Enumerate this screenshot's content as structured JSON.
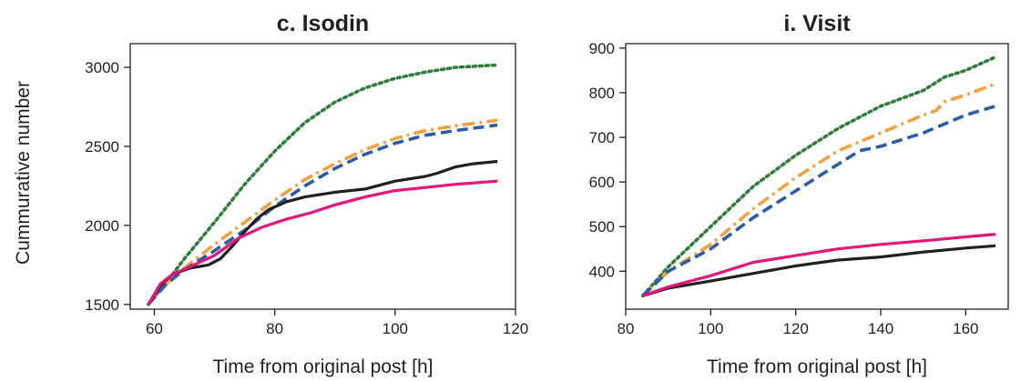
{
  "figure": {
    "ylabel": "Cummurative number"
  },
  "chart_data": [
    {
      "type": "line",
      "title": "c. Isodin",
      "xlabel": "Time from original post [h]",
      "ylabel": "Cummurative number",
      "xlim": [
        56,
        120
      ],
      "ylim": [
        1470,
        3150
      ],
      "xticks": [
        60,
        80,
        100,
        120
      ],
      "yticks": [
        1500,
        2000,
        2500,
        3000
      ],
      "grid": false,
      "legend": "none",
      "series": [
        {
          "color": "#2e7d3a",
          "style": "dotted",
          "x": [
            59,
            62,
            65,
            70,
            75,
            80,
            85,
            90,
            95,
            100,
            105,
            110,
            117
          ],
          "y": [
            1500,
            1640,
            1790,
            2020,
            2260,
            2470,
            2650,
            2780,
            2870,
            2930,
            2970,
            3000,
            3015
          ]
        },
        {
          "color": "#f5a03c",
          "style": "dashdot",
          "x": [
            59,
            62,
            65,
            70,
            75,
            80,
            85,
            90,
            95,
            100,
            105,
            110,
            117
          ],
          "y": [
            1500,
            1630,
            1730,
            1880,
            2020,
            2160,
            2290,
            2390,
            2480,
            2550,
            2600,
            2630,
            2665
          ]
        },
        {
          "color": "#2a5ca8",
          "style": "dashed",
          "x": [
            59,
            62,
            65,
            70,
            75,
            80,
            85,
            90,
            95,
            100,
            105,
            110,
            117
          ],
          "y": [
            1500,
            1630,
            1720,
            1840,
            1970,
            2120,
            2250,
            2360,
            2450,
            2520,
            2570,
            2600,
            2635
          ]
        },
        {
          "color": "#231f20",
          "style": "solid",
          "x": [
            59,
            61,
            63,
            66,
            69,
            71,
            73,
            75,
            77,
            79,
            82,
            85,
            90,
            95,
            100,
            105,
            107,
            110,
            113,
            117
          ],
          "y": [
            1500,
            1620,
            1690,
            1730,
            1750,
            1790,
            1870,
            1960,
            2040,
            2100,
            2150,
            2180,
            2210,
            2230,
            2280,
            2310,
            2330,
            2370,
            2390,
            2405
          ]
        },
        {
          "color": "#e6157a",
          "style": "solid",
          "x": [
            59,
            61,
            63,
            66,
            70,
            74,
            78,
            82,
            86,
            90,
            95,
            100,
            105,
            110,
            117
          ],
          "y": [
            1500,
            1630,
            1690,
            1740,
            1810,
            1920,
            1990,
            2040,
            2080,
            2130,
            2180,
            2220,
            2240,
            2260,
            2280
          ]
        }
      ]
    },
    {
      "type": "line",
      "title": "i. Visit",
      "xlabel": "Time from original post [h]",
      "ylabel": "",
      "xlim": [
        80,
        170
      ],
      "ylim": [
        315,
        910
      ],
      "xticks": [
        80,
        100,
        120,
        140,
        160
      ],
      "yticks": [
        400,
        500,
        600,
        700,
        800,
        900
      ],
      "grid": false,
      "legend": "none",
      "series": [
        {
          "color": "#2e7d3a",
          "style": "dotted",
          "x": [
            84,
            90,
            100,
            110,
            120,
            130,
            140,
            150,
            155,
            160,
            167
          ],
          "y": [
            345,
            410,
            500,
            590,
            660,
            720,
            770,
            805,
            835,
            850,
            880
          ]
        },
        {
          "color": "#f5a03c",
          "style": "dashdot",
          "x": [
            84,
            90,
            100,
            110,
            120,
            130,
            140,
            150,
            153,
            155,
            160,
            167
          ],
          "y": [
            345,
            400,
            460,
            540,
            610,
            670,
            710,
            750,
            760,
            780,
            795,
            820
          ]
        },
        {
          "color": "#2a5ca8",
          "style": "dashed",
          "x": [
            84,
            90,
            100,
            110,
            120,
            130,
            135,
            140,
            150,
            155,
            160,
            167
          ],
          "y": [
            345,
            400,
            450,
            520,
            580,
            640,
            670,
            680,
            710,
            730,
            750,
            770
          ]
        },
        {
          "color": "#231f20",
          "style": "solid",
          "x": [
            84,
            90,
            100,
            110,
            120,
            130,
            140,
            150,
            160,
            167
          ],
          "y": [
            345,
            362,
            378,
            395,
            412,
            425,
            432,
            443,
            452,
            457
          ]
        },
        {
          "color": "#e6157a",
          "style": "solid",
          "x": [
            84,
            90,
            100,
            110,
            120,
            130,
            140,
            150,
            160,
            167
          ],
          "y": [
            345,
            365,
            390,
            420,
            435,
            450,
            460,
            468,
            477,
            483
          ]
        }
      ]
    }
  ]
}
